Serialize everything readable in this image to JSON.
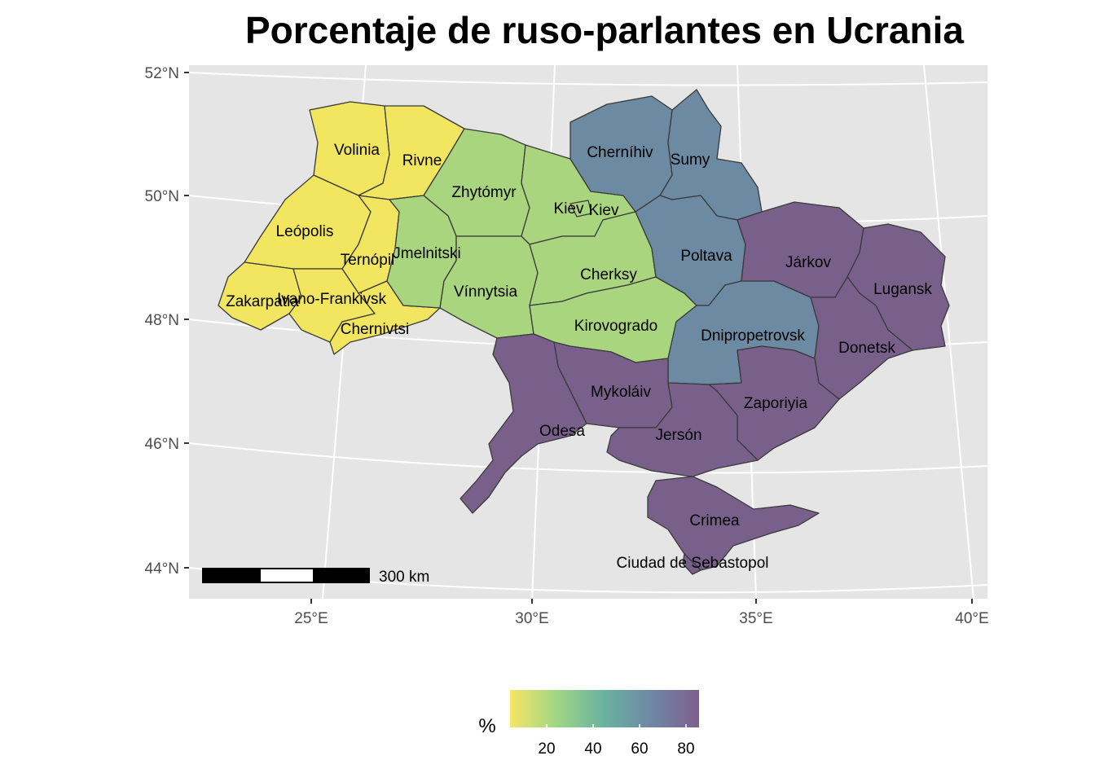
{
  "title": "Porcentaje de ruso-parlantes en Ucrania",
  "axes": {
    "lat_ticks": [
      "52°N",
      "50°N",
      "48°N",
      "46°N",
      "44°N"
    ],
    "lon_ticks": [
      "25°E",
      "30°E",
      "35°E",
      "40°E"
    ]
  },
  "colors": {
    "panel_bg": "#e5e5e5",
    "grid": "#ffffff",
    "low": "#f2e55f",
    "mid_low": "#92cf89",
    "mid": "#6d8aa3",
    "high": "#7a5e8a"
  },
  "regions": [
    {
      "name": "Volinia",
      "pct": 5
    },
    {
      "name": "Rivne",
      "pct": 5
    },
    {
      "name": "Zhytómyr",
      "pct": 20
    },
    {
      "name": "Kiev",
      "pct": 20
    },
    {
      "name": "Kiev",
      "pct": 20
    },
    {
      "name": "Cherníhiv",
      "pct": 60
    },
    {
      "name": "Sumy",
      "pct": 60
    },
    {
      "name": "Leópolis",
      "pct": 5
    },
    {
      "name": "Ternópil",
      "pct": 5
    },
    {
      "name": "Jmelnitski",
      "pct": 20
    },
    {
      "name": "Vínnytsia",
      "pct": 20
    },
    {
      "name": "Cherksy",
      "pct": 20
    },
    {
      "name": "Poltava",
      "pct": 60
    },
    {
      "name": "Járkov",
      "pct": 84
    },
    {
      "name": "Lugansk",
      "pct": 84
    },
    {
      "name": "Zakarpatia",
      "pct": 5
    },
    {
      "name": "Ivano-Frankivsk",
      "pct": 5
    },
    {
      "name": "Chernivtsi",
      "pct": 5
    },
    {
      "name": "Kirovogrado",
      "pct": 20
    },
    {
      "name": "Dnipropetrovsk",
      "pct": 60
    },
    {
      "name": "Donetsk",
      "pct": 84
    },
    {
      "name": "Mykoláiv",
      "pct": 84
    },
    {
      "name": "Zaporiyia",
      "pct": 84
    },
    {
      "name": "Odesa",
      "pct": 84
    },
    {
      "name": "Jersón",
      "pct": 84
    },
    {
      "name": "Crimea",
      "pct": 84
    },
    {
      "name": "Ciudad de Sebastopol",
      "pct": 84
    }
  ],
  "scale_bar": {
    "label": "300 km"
  },
  "legend": {
    "title": "%",
    "ticks": [
      "20",
      "40",
      "60",
      "80"
    ]
  }
}
